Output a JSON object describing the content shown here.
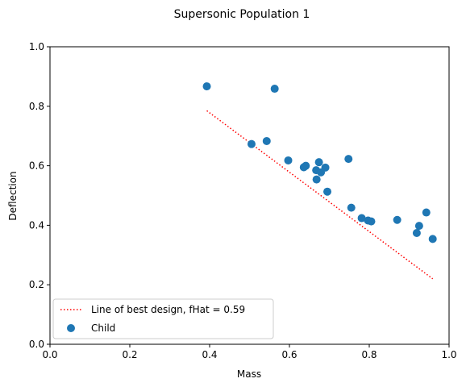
{
  "chart_data": {
    "type": "scatter",
    "title": "Supersonic Population 1",
    "xlabel": "Mass",
    "ylabel": "Deflection",
    "xlim": [
      0.0,
      1.0
    ],
    "ylim": [
      0.0,
      1.0
    ],
    "xticks": [
      "0.0",
      "0.2",
      "0.4",
      "0.6",
      "0.8",
      "1.0"
    ],
    "yticks": [
      "0.0",
      "0.2",
      "0.4",
      "0.6",
      "0.8",
      "1.0"
    ],
    "grid": false,
    "legend_position": "lower-left",
    "series": [
      {
        "name": "Child",
        "kind": "scatter",
        "color": "#1f77b4",
        "x": [
          0.393,
          0.563,
          0.505,
          0.543,
          0.597,
          0.636,
          0.641,
          0.667,
          0.674,
          0.679,
          0.69,
          0.668,
          0.695,
          0.748,
          0.755,
          0.781,
          0.797,
          0.805,
          0.87,
          0.919,
          0.925,
          0.943,
          0.959
        ],
        "y": [
          0.867,
          0.859,
          0.673,
          0.683,
          0.618,
          0.595,
          0.6,
          0.585,
          0.612,
          0.578,
          0.594,
          0.554,
          0.513,
          0.623,
          0.459,
          0.424,
          0.416,
          0.413,
          0.418,
          0.374,
          0.398,
          0.443,
          0.354
        ]
      },
      {
        "name": "Line of best design, fHat = 0.59",
        "kind": "line",
        "style": "dotted",
        "color": "#ff0000",
        "x": [
          0.393,
          0.959
        ],
        "y": [
          0.785,
          0.22
        ]
      }
    ]
  }
}
